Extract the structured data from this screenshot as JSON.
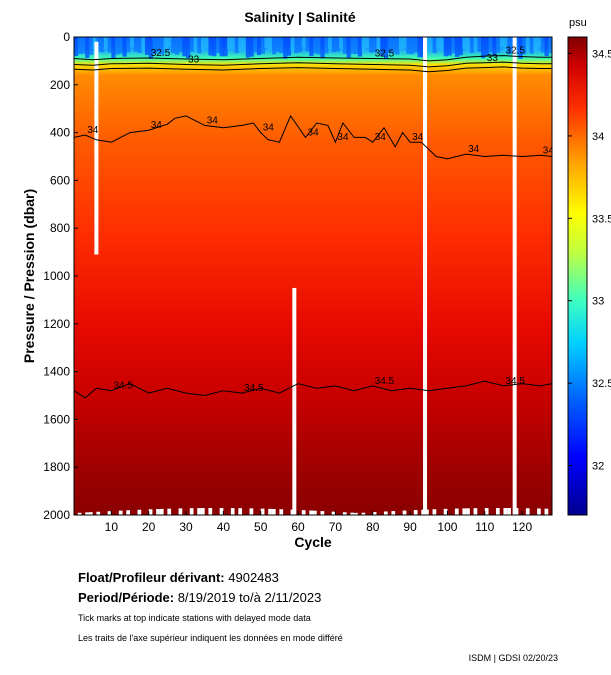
{
  "chart_data": {
    "type": "heatmap",
    "title": "Salinity | Salinité",
    "xlabel": "Cycle",
    "ylabel": "Pressure / Pression (dbar)",
    "xlim": [
      0,
      128
    ],
    "ylim": [
      2000,
      0
    ],
    "x_ticks": [
      10,
      20,
      30,
      40,
      50,
      60,
      70,
      80,
      90,
      100,
      110,
      120
    ],
    "y_ticks": [
      0,
      200,
      400,
      600,
      800,
      1000,
      1200,
      1400,
      1600,
      1800,
      2000
    ],
    "colorbar": {
      "unit": "psu",
      "range": [
        31.7,
        34.6
      ],
      "ticks": [
        "32",
        "32.5",
        "33",
        "33.5",
        "34",
        "34.5"
      ],
      "ticks_value": [
        32,
        32.5,
        33,
        33.5,
        34,
        34.5
      ],
      "colormap": "jet"
    },
    "missing_profiles": [
      {
        "cycle": 6,
        "pressure_from": 20,
        "pressure_to": 910
      },
      {
        "cycle": 59,
        "pressure_from": 1050,
        "pressure_to": 2000
      },
      {
        "cycle": 94,
        "pressure_from": 0,
        "pressure_to": 2000
      },
      {
        "cycle": 118,
        "pressure_from": 0,
        "pressure_to": 2000
      }
    ],
    "contours": [
      {
        "level": 32.5,
        "labels": [
          "32.5",
          "32.5",
          "32.5"
        ],
        "x": [
          0,
          5,
          10,
          20,
          30,
          40,
          50,
          60,
          70,
          80,
          90,
          95,
          100,
          105,
          110,
          115,
          120,
          125,
          128
        ],
        "y": [
          90,
          95,
          90,
          88,
          92,
          95,
          90,
          85,
          88,
          90,
          92,
          100,
          95,
          85,
          80,
          78,
          82,
          85,
          85
        ]
      },
      {
        "level": 33,
        "labels": [
          "33",
          "33"
        ],
        "x": [
          0,
          5,
          10,
          20,
          30,
          40,
          50,
          60,
          70,
          80,
          90,
          95,
          100,
          105,
          110,
          115,
          120,
          125,
          128
        ],
        "y": [
          115,
          118,
          112,
          110,
          115,
          118,
          112,
          108,
          112,
          115,
          118,
          125,
          120,
          110,
          108,
          105,
          110,
          112,
          112
        ]
      },
      {
        "level": 33.5,
        "labels": [],
        "x": [
          0,
          5,
          10,
          20,
          30,
          40,
          50,
          60,
          70,
          80,
          90,
          95,
          100,
          105,
          110,
          115,
          120,
          125,
          128
        ],
        "y": [
          135,
          138,
          132,
          130,
          135,
          138,
          132,
          128,
          132,
          135,
          138,
          145,
          140,
          130,
          128,
          125,
          130,
          132,
          132
        ]
      },
      {
        "level": 34,
        "labels": [
          "34",
          "34",
          "34",
          "34",
          "34",
          "34",
          "34",
          "34",
          "34",
          "34"
        ],
        "x": [
          0,
          3,
          6,
          10,
          15,
          20,
          25,
          27,
          30,
          35,
          40,
          45,
          48,
          50,
          52,
          55,
          58,
          62,
          65,
          68,
          70,
          72,
          75,
          78,
          80,
          83,
          86,
          88,
          90,
          93,
          97,
          100,
          105,
          110,
          115,
          120,
          125,
          128
        ],
        "y": [
          420,
          410,
          430,
          440,
          400,
          390,
          365,
          340,
          330,
          370,
          380,
          370,
          360,
          400,
          430,
          440,
          330,
          420,
          360,
          370,
          440,
          360,
          420,
          420,
          440,
          380,
          460,
          400,
          440,
          440,
          500,
          510,
          490,
          500,
          495,
          500,
          495,
          500
        ]
      },
      {
        "level": 34.5,
        "labels": [
          "34.5",
          "34.5",
          "34.5",
          "34.5"
        ],
        "x": [
          0,
          3,
          6,
          10,
          15,
          20,
          25,
          30,
          35,
          40,
          45,
          50,
          55,
          60,
          65,
          70,
          75,
          80,
          85,
          90,
          95,
          100,
          105,
          110,
          115,
          120,
          125,
          128
        ],
        "y": [
          1480,
          1510,
          1470,
          1480,
          1450,
          1490,
          1470,
          1490,
          1500,
          1480,
          1490,
          1470,
          1490,
          1450,
          1470,
          1460,
          1480,
          1460,
          1480,
          1470,
          1480,
          1470,
          1460,
          1440,
          1460,
          1450,
          1460,
          1450
        ]
      }
    ]
  },
  "info": {
    "float_label": "Float/Profileur dérivant:",
    "float_id": "4902483",
    "period_label": "Period/Période:",
    "period_start": "8/19/2019",
    "period_to": "to/à",
    "period_end": "2/11/2023",
    "note_en": "Tick marks at top indicate stations with delayed mode data",
    "note_fr": "Les traits de l'axe supérieur indiquent les données en mode différé",
    "credit": "ISDM | GDSI 02/20/23"
  }
}
